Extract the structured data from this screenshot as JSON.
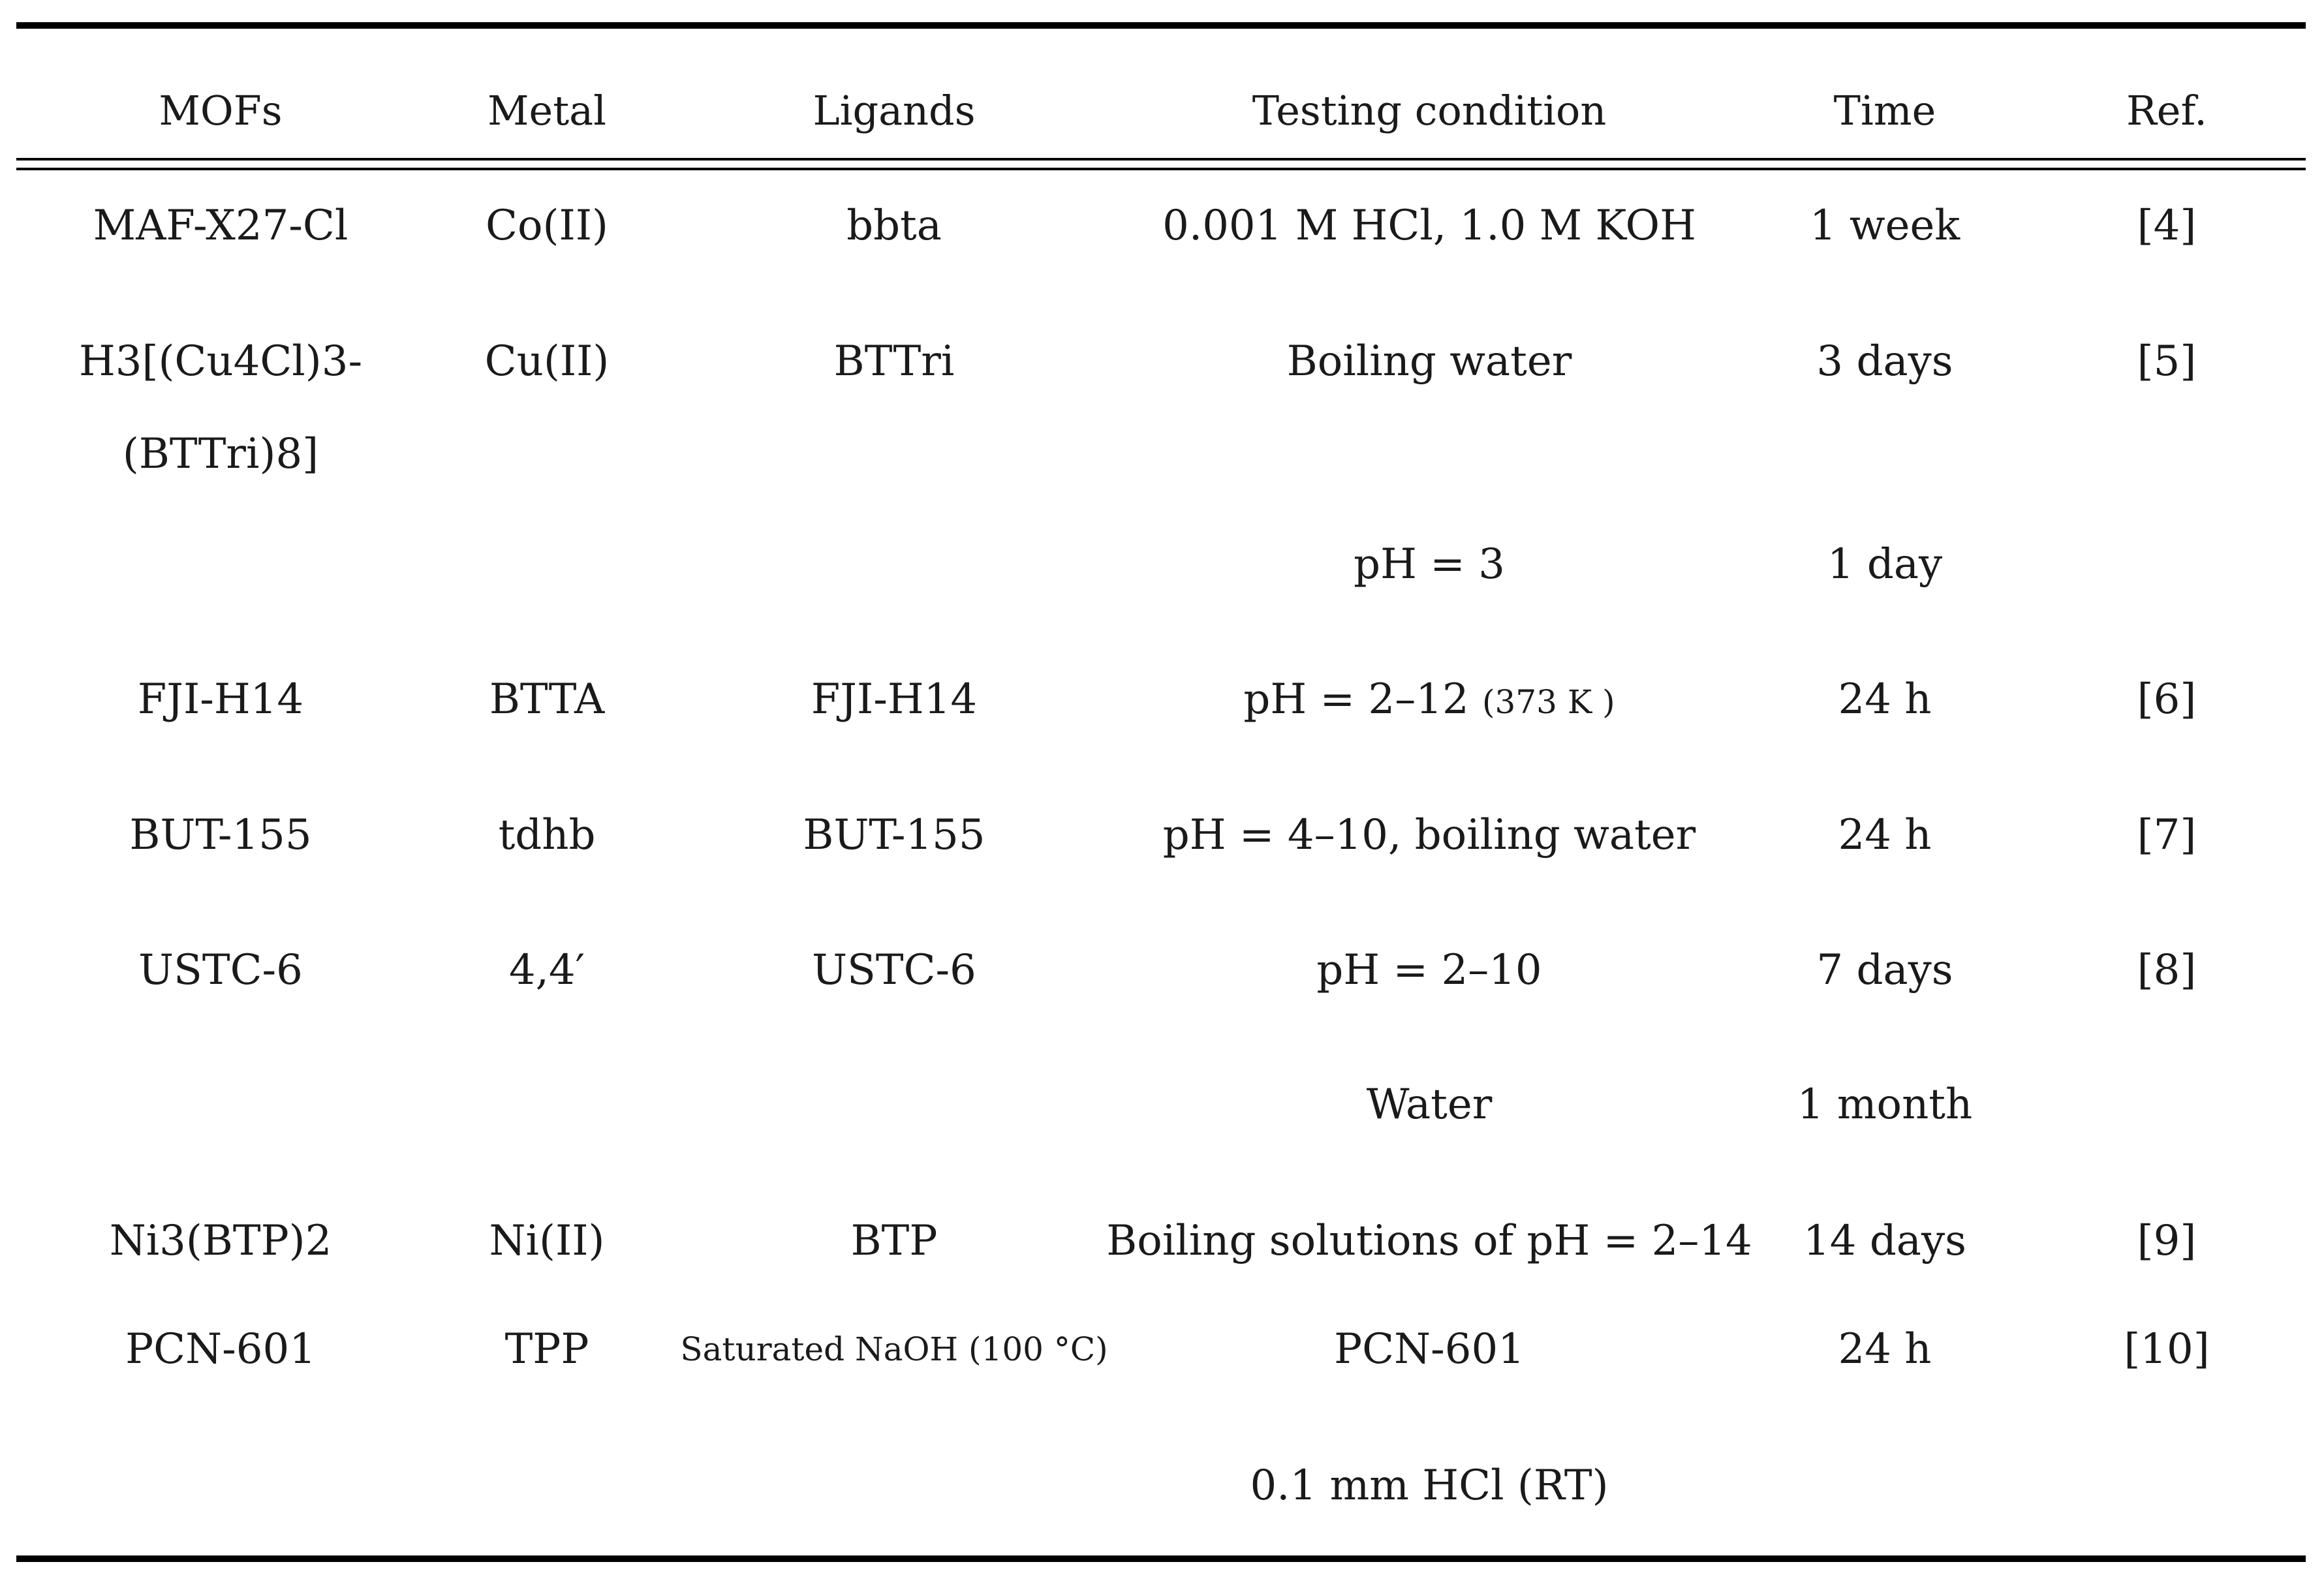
{
  "table": {
    "headers": [
      "MOFs",
      "Metal",
      "Ligands",
      "Testing condition",
      "Time",
      "Ref."
    ],
    "rows": [
      {
        "mofs": "MAF-X27-Cl",
        "metal": "Co(II)",
        "ligands": "bbta",
        "condition": "0.001 M HCl, 1.0 M KOH",
        "time": "1 week",
        "ref": "[4]"
      },
      {
        "mofs_line1": "H3[(Cu4Cl)3-",
        "mofs_line2": "(BTTri)8]",
        "metal": "Cu(II)",
        "ligands": "BTTri",
        "condition": "Boiling water",
        "time": "3 days",
        "ref": "[5]"
      },
      {
        "condition": "pH = 3",
        "time": "1 day"
      },
      {
        "mofs": "FJI-H14",
        "metal": "BTTA",
        "ligands": "FJI-H14",
        "condition_main": "pH = 2–12",
        "condition_small": "(373 K )",
        "time": "24 h",
        "ref": "[6]"
      },
      {
        "mofs": "BUT-155",
        "metal": "tdhb",
        "ligands": "BUT-155",
        "condition": "pH = 4–10, boiling water",
        "time": "24 h",
        "ref": "[7]"
      },
      {
        "mofs": "USTC-6",
        "metal": "4,4′",
        "ligands": "USTC-6",
        "condition": "pH = 2–10",
        "time": "7 days",
        "ref": "[8]"
      },
      {
        "condition": "Water",
        "time": "1 month"
      },
      {
        "mofs": "Ni3(BTP)2",
        "metal": "Ni(II)",
        "ligands": "BTP",
        "condition": "Boiling solutions of pH = 2–14",
        "time": "14 days",
        "ref": "[9]"
      },
      {
        "mofs": "PCN-601",
        "metal": "TPP",
        "ligands": "Saturated NaOH (100 °C)",
        "condition": "PCN-601",
        "time": "24 h",
        "ref": "[10]"
      },
      {
        "condition": "0.1 mm HCl (RT)"
      }
    ]
  }
}
